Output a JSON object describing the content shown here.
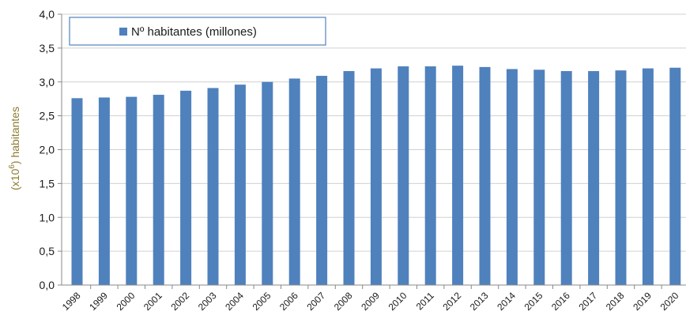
{
  "chart_data": {
    "type": "bar",
    "title": "",
    "xlabel": "",
    "ylabel_prefix": "(x10",
    "ylabel_exponent": "6",
    "ylabel_suffix": ")  habitantes",
    "ylim": [
      0,
      4.0
    ],
    "yticks": [
      "0,0",
      "0,5",
      "1,0",
      "1,5",
      "2,0",
      "2,5",
      "3,0",
      "3,5",
      "4,0"
    ],
    "grid": true,
    "legend_position": "top-left",
    "series": [
      {
        "name": "Nº habitantes (millones)",
        "color": "#4f81bd",
        "values": [
          2.76,
          2.77,
          2.78,
          2.81,
          2.87,
          2.91,
          2.96,
          3.0,
          3.05,
          3.09,
          3.16,
          3.2,
          3.23,
          3.23,
          3.24,
          3.22,
          3.19,
          3.18,
          3.16,
          3.16,
          3.17,
          3.2,
          3.21
        ]
      }
    ],
    "categories": [
      "1998",
      "1999",
      "2000",
      "2001",
      "2002",
      "2003",
      "2004",
      "2005",
      "2006",
      "2007",
      "2008",
      "2009",
      "2010",
      "2011",
      "2012",
      "2013",
      "2014",
      "2015",
      "2016",
      "2017",
      "2018",
      "2019",
      "2020"
    ],
    "colors": {
      "ylabel": "#8c7a2e",
      "legend_border": "#4f81bd",
      "grid": "#d0d0d0",
      "axis": "#888888"
    }
  }
}
